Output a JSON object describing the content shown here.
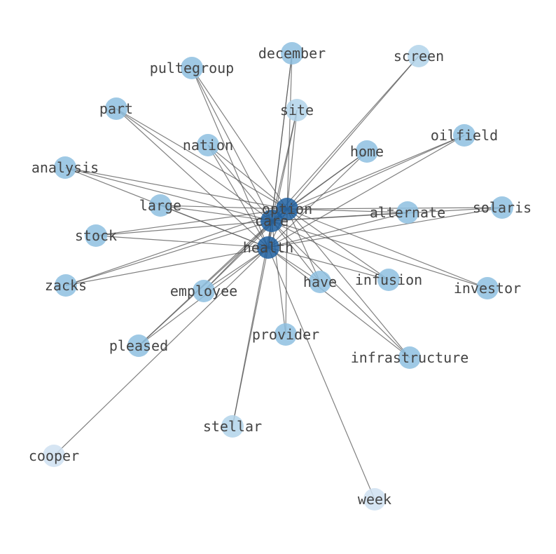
{
  "graph": {
    "hub_color": "#1f5f9f",
    "node_colors": {
      "hub": "#1f5f9f",
      "mid": "#8ec0e0",
      "light": "#b2d3ea",
      "faint": "#cfe0f1"
    },
    "edge_color": "#555555",
    "nodes": [
      {
        "id": "option",
        "level": "hub"
      },
      {
        "id": "care",
        "level": "hub"
      },
      {
        "id": "health",
        "level": "hub"
      },
      {
        "id": "december",
        "level": "mid"
      },
      {
        "id": "screen",
        "level": "light"
      },
      {
        "id": "pultegroup",
        "level": "mid"
      },
      {
        "id": "part",
        "level": "mid"
      },
      {
        "id": "site",
        "level": "light"
      },
      {
        "id": "oilfield",
        "level": "mid"
      },
      {
        "id": "nation",
        "level": "mid"
      },
      {
        "id": "home",
        "level": "mid"
      },
      {
        "id": "analysis",
        "level": "mid"
      },
      {
        "id": "large",
        "level": "mid"
      },
      {
        "id": "alternate",
        "level": "mid"
      },
      {
        "id": "solaris",
        "level": "mid"
      },
      {
        "id": "stock",
        "level": "mid"
      },
      {
        "id": "zacks",
        "level": "mid"
      },
      {
        "id": "employee",
        "level": "mid"
      },
      {
        "id": "have",
        "level": "mid"
      },
      {
        "id": "infusion",
        "level": "mid"
      },
      {
        "id": "investor",
        "level": "mid"
      },
      {
        "id": "pleased",
        "level": "mid"
      },
      {
        "id": "provider",
        "level": "mid"
      },
      {
        "id": "infrastructure",
        "level": "mid"
      },
      {
        "id": "stellar",
        "level": "light"
      },
      {
        "id": "cooper",
        "level": "faint"
      },
      {
        "id": "week",
        "level": "faint"
      }
    ],
    "edges": [
      [
        "option",
        "care"
      ],
      [
        "option",
        "health"
      ],
      [
        "care",
        "health"
      ],
      [
        "december",
        "option"
      ],
      [
        "december",
        "care"
      ],
      [
        "december",
        "health"
      ],
      [
        "screen",
        "option"
      ],
      [
        "screen",
        "care"
      ],
      [
        "pultegroup",
        "option"
      ],
      [
        "pultegroup",
        "care"
      ],
      [
        "pultegroup",
        "health"
      ],
      [
        "part",
        "option"
      ],
      [
        "part",
        "care"
      ],
      [
        "part",
        "health"
      ],
      [
        "site",
        "option"
      ],
      [
        "site",
        "care"
      ],
      [
        "site",
        "health"
      ],
      [
        "oilfield",
        "option"
      ],
      [
        "oilfield",
        "care"
      ],
      [
        "oilfield",
        "health"
      ],
      [
        "nation",
        "option"
      ],
      [
        "nation",
        "care"
      ],
      [
        "nation",
        "health"
      ],
      [
        "home",
        "option"
      ],
      [
        "home",
        "care"
      ],
      [
        "home",
        "health"
      ],
      [
        "analysis",
        "option"
      ],
      [
        "analysis",
        "care"
      ],
      [
        "analysis",
        "health"
      ],
      [
        "large",
        "option"
      ],
      [
        "large",
        "care"
      ],
      [
        "large",
        "health"
      ],
      [
        "alternate",
        "option"
      ],
      [
        "alternate",
        "care"
      ],
      [
        "alternate",
        "health"
      ],
      [
        "solaris",
        "option"
      ],
      [
        "solaris",
        "care"
      ],
      [
        "solaris",
        "health"
      ],
      [
        "stock",
        "option"
      ],
      [
        "stock",
        "care"
      ],
      [
        "stock",
        "health"
      ],
      [
        "zacks",
        "option"
      ],
      [
        "zacks",
        "care"
      ],
      [
        "zacks",
        "health"
      ],
      [
        "employee",
        "option"
      ],
      [
        "employee",
        "care"
      ],
      [
        "employee",
        "health"
      ],
      [
        "have",
        "option"
      ],
      [
        "have",
        "care"
      ],
      [
        "have",
        "health"
      ],
      [
        "infusion",
        "option"
      ],
      [
        "infusion",
        "care"
      ],
      [
        "infusion",
        "health"
      ],
      [
        "investor",
        "option"
      ],
      [
        "investor",
        "care"
      ],
      [
        "pleased",
        "option"
      ],
      [
        "pleased",
        "care"
      ],
      [
        "pleased",
        "health"
      ],
      [
        "provider",
        "option"
      ],
      [
        "provider",
        "care"
      ],
      [
        "infrastructure",
        "option"
      ],
      [
        "infrastructure",
        "care"
      ],
      [
        "infrastructure",
        "health"
      ],
      [
        "stellar",
        "care"
      ],
      [
        "stellar",
        "health"
      ],
      [
        "cooper",
        "health"
      ],
      [
        "week",
        "health"
      ]
    ]
  }
}
